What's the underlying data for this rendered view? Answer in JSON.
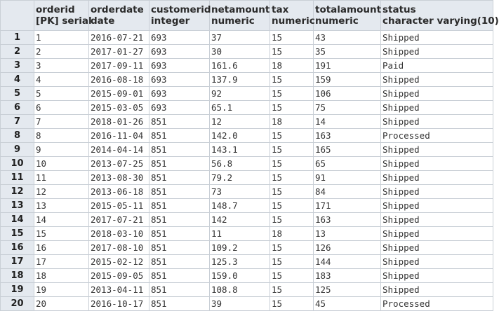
{
  "columns": [
    {
      "name": "orderid",
      "type": "[PK] serial"
    },
    {
      "name": "orderdate",
      "type": "date"
    },
    {
      "name": "customerid",
      "type": "integer"
    },
    {
      "name": "netamount",
      "type": "numeric"
    },
    {
      "name": "tax",
      "type": "numeric"
    },
    {
      "name": "totalamount",
      "type": "numeric"
    },
    {
      "name": "status",
      "type": "character varying(10)"
    }
  ],
  "rows": [
    {
      "num": "1",
      "cells": [
        "1",
        "2016-07-21",
        "693",
        "37",
        "15",
        "43",
        "Shipped"
      ]
    },
    {
      "num": "2",
      "cells": [
        "2",
        "2017-01-27",
        "693",
        "30",
        "15",
        "35",
        "Shipped"
      ]
    },
    {
      "num": "3",
      "cells": [
        "3",
        "2017-09-11",
        "693",
        "161.6",
        "18",
        "191",
        "Paid"
      ]
    },
    {
      "num": "4",
      "cells": [
        "4",
        "2016-08-18",
        "693",
        "137.9",
        "15",
        "159",
        "Shipped"
      ]
    },
    {
      "num": "5",
      "cells": [
        "5",
        "2015-09-01",
        "693",
        "92",
        "15",
        "106",
        "Shipped"
      ]
    },
    {
      "num": "6",
      "cells": [
        "6",
        "2015-03-05",
        "693",
        "65.1",
        "15",
        "75",
        "Shipped"
      ]
    },
    {
      "num": "7",
      "cells": [
        "7",
        "2018-01-26",
        "851",
        "12",
        "18",
        "14",
        "Shipped"
      ]
    },
    {
      "num": "8",
      "cells": [
        "8",
        "2016-11-04",
        "851",
        "142.0",
        "15",
        "163",
        "Processed"
      ]
    },
    {
      "num": "9",
      "cells": [
        "9",
        "2014-04-14",
        "851",
        "143.1",
        "15",
        "165",
        "Shipped"
      ]
    },
    {
      "num": "10",
      "cells": [
        "10",
        "2013-07-25",
        "851",
        "56.8",
        "15",
        "65",
        "Shipped"
      ]
    },
    {
      "num": "11",
      "cells": [
        "11",
        "2013-08-30",
        "851",
        "79.2",
        "15",
        "91",
        "Shipped"
      ]
    },
    {
      "num": "12",
      "cells": [
        "12",
        "2013-06-18",
        "851",
        "73",
        "15",
        "84",
        "Shipped"
      ]
    },
    {
      "num": "13",
      "cells": [
        "13",
        "2015-05-11",
        "851",
        "148.7",
        "15",
        "171",
        "Shipped"
      ]
    },
    {
      "num": "14",
      "cells": [
        "14",
        "2017-07-21",
        "851",
        "142",
        "15",
        "163",
        "Shipped"
      ]
    },
    {
      "num": "15",
      "cells": [
        "15",
        "2018-03-10",
        "851",
        "11",
        "18",
        "13",
        "Shipped"
      ]
    },
    {
      "num": "16",
      "cells": [
        "16",
        "2017-08-10",
        "851",
        "109.2",
        "15",
        "126",
        "Shipped"
      ]
    },
    {
      "num": "17",
      "cells": [
        "17",
        "2015-02-12",
        "851",
        "125.3",
        "15",
        "144",
        "Shipped"
      ]
    },
    {
      "num": "18",
      "cells": [
        "18",
        "2015-09-05",
        "851",
        "159.0",
        "15",
        "183",
        "Shipped"
      ]
    },
    {
      "num": "19",
      "cells": [
        "19",
        "2013-04-11",
        "851",
        "108.8",
        "15",
        "125",
        "Shipped"
      ]
    },
    {
      "num": "20",
      "cells": [
        "20",
        "2016-10-17",
        "851",
        "39",
        "15",
        "45",
        "Processed"
      ]
    }
  ]
}
